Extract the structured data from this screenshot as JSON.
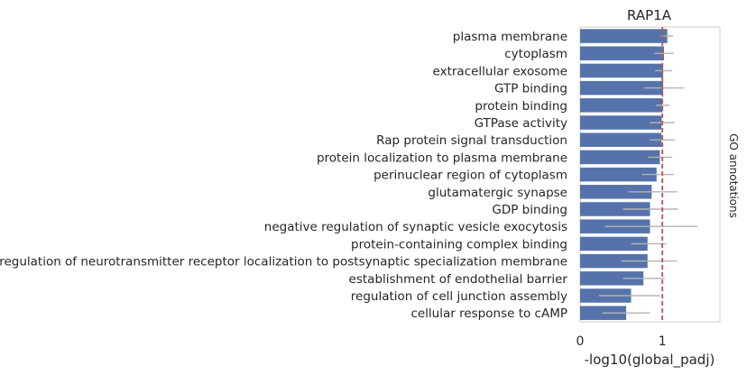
{
  "chart_data": {
    "type": "bar",
    "orientation": "horizontal",
    "title": "RAP1A",
    "xlabel": "-log10(global_padj)",
    "ylabel": "",
    "side_label": "GO annotations",
    "xlim": [
      0,
      1.7
    ],
    "xticks": [
      0,
      1
    ],
    "grid": false,
    "threshold": 1.0,
    "colors": {
      "bar": "#5573aa",
      "error": "#b3b3b3",
      "threshold": "#c44e52",
      "frame": "#cccccc"
    },
    "categories": [
      "plasma membrane",
      "cytoplasm",
      "extracellular exosome",
      "GTP binding",
      "protein binding",
      "GTPase activity",
      "Rap protein signal transduction",
      "protein localization to plasma membrane",
      "perinuclear region of cytoplasm",
      "glutamatergic synapse",
      "GDP binding",
      "negative regulation of synaptic vesicle exocytosis",
      "protein-containing complex binding",
      "regulation of neurotransmitter receptor localization to postsynaptic specialization membrane",
      "establishment of endothelial barrier",
      "regulation of cell junction assembly",
      "cellular response to cAMP"
    ],
    "values": [
      1.06,
      1.02,
      1.01,
      1.01,
      1.0,
      0.99,
      0.99,
      0.97,
      0.93,
      0.87,
      0.85,
      0.85,
      0.82,
      0.82,
      0.77,
      0.62,
      0.56
    ],
    "error_low": [
      0.98,
      0.9,
      0.91,
      0.78,
      0.92,
      0.85,
      0.85,
      0.83,
      0.75,
      0.59,
      0.52,
      0.3,
      0.62,
      0.5,
      0.52,
      0.23,
      0.27
    ],
    "error_high": [
      1.13,
      1.14,
      1.12,
      1.26,
      1.09,
      1.15,
      1.15,
      1.12,
      1.14,
      1.18,
      1.19,
      1.43,
      1.05,
      1.18,
      1.03,
      0.97,
      0.85
    ]
  }
}
